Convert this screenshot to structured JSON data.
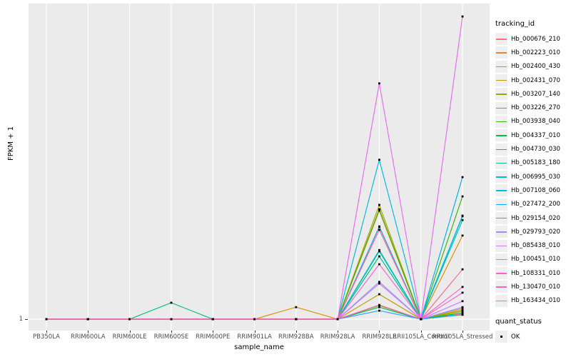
{
  "chart_data": {
    "type": "line",
    "title": "",
    "xlabel": "sample_name",
    "ylabel": "FPKM + 1",
    "x_categories": [
      "PB350LA",
      "RRIM600LA",
      "RRIM600LE",
      "RRIM600SE",
      "RRIM600PE",
      "RRIM901LA",
      "RRIM928BA",
      "RRIM928LA",
      "RRIM928LE",
      "RRII105LA_Control",
      "RRII105LA_Stressed"
    ],
    "y_axis": {
      "scale": "log-like, only the value 1 is labeled",
      "tick_labels": [
        "1"
      ]
    },
    "values_unit": "fraction of panel height above the y=1 baseline (axis shows no labels above 1); 0 = FPKM+1 of 1",
    "legend_title": "tracking_id",
    "panel_background": "#EBEBEB",
    "gridline_color": "#FFFFFF",
    "point_color": "#000000",
    "series": [
      {
        "name": "Hb_000676_210",
        "color": "#F8766D",
        "values": [
          0,
          0,
          0,
          0,
          0,
          0,
          0,
          0,
          0.294,
          0,
          0.016
        ]
      },
      {
        "name": "Hb_002223_010",
        "color": "#EA8331",
        "values": [
          0,
          0,
          0,
          0,
          0,
          0,
          0,
          0,
          0.344,
          0,
          0.034
        ]
      },
      {
        "name": "Hb_002400_430",
        "color": "#D89000",
        "values": [
          0,
          0,
          0,
          0,
          0,
          0,
          0.038,
          0,
          0.348,
          0,
          0.265
        ]
      },
      {
        "name": "Hb_002431_070",
        "color": "#C09B00",
        "values": [
          0,
          0,
          0,
          0,
          0,
          0,
          0,
          0,
          0.079,
          0,
          0.02
        ]
      },
      {
        "name": "Hb_003207_140",
        "color": "#A3A500",
        "values": [
          0,
          0,
          0,
          0,
          0,
          0,
          0,
          0,
          0.362,
          0,
          0.025
        ]
      },
      {
        "name": "Hb_003226_270",
        "color": "#7CAE00",
        "values": [
          0,
          0,
          0,
          0,
          0,
          0,
          0,
          0,
          0.043,
          0,
          0.029
        ]
      },
      {
        "name": "Hb_003938_040",
        "color": "#39B600",
        "values": [
          0,
          0,
          0,
          0,
          0,
          0,
          0,
          0,
          0.348,
          0,
          0.389
        ]
      },
      {
        "name": "Hb_004337_010",
        "color": "#00BB4E",
        "values": [
          0,
          0,
          0,
          0,
          0,
          0,
          0,
          0,
          0.038,
          0,
          0.02
        ]
      },
      {
        "name": "Hb_004730_030",
        "color": "#00BF7D",
        "values": [
          0,
          0,
          0,
          0.052,
          0,
          0,
          0,
          0,
          0.199,
          0,
          0.014
        ]
      },
      {
        "name": "Hb_005183_180",
        "color": "#00C1A7",
        "values": [
          0,
          0,
          0,
          0,
          0,
          0,
          0,
          0,
          0.219,
          0,
          0.314
        ]
      },
      {
        "name": "Hb_006995_030",
        "color": "#00BFC4",
        "values": [
          0,
          0,
          0,
          0,
          0,
          0,
          0,
          0,
          0.215,
          0,
          0.326
        ]
      },
      {
        "name": "Hb_007108_060",
        "color": "#00BAE0",
        "values": [
          0,
          0,
          0,
          0,
          0,
          0,
          0,
          0,
          0.505,
          0,
          0.328
        ]
      },
      {
        "name": "Hb_027472_200",
        "color": "#00B0F6",
        "values": [
          0,
          0,
          0,
          0,
          0,
          0,
          0,
          0,
          0.292,
          0,
          0.45
        ]
      },
      {
        "name": "Hb_029154_020",
        "color": "#35A2FF",
        "values": [
          0,
          0,
          0,
          0,
          0,
          0,
          0,
          0,
          0.027,
          0,
          0.014
        ]
      },
      {
        "name": "Hb_029793_020",
        "color": "#9590FF",
        "values": [
          0,
          0,
          0,
          0,
          0,
          0,
          0,
          0,
          0.118,
          0,
          0.038
        ]
      },
      {
        "name": "Hb_085438_010",
        "color": "#C77CFF",
        "values": [
          0,
          0,
          0,
          0,
          0,
          0,
          0,
          0,
          0.113,
          0,
          0.057
        ]
      },
      {
        "name": "Hb_100451_010",
        "color": "#E76BF3",
        "values": [
          0,
          0,
          0,
          0,
          0,
          0,
          0,
          0,
          0.747,
          0,
          0.959
        ]
      },
      {
        "name": "Hb_108331_010",
        "color": "#FA62DB",
        "values": [
          0,
          0,
          0,
          0,
          0,
          0,
          0,
          0,
          0.174,
          0,
          0.084
        ]
      },
      {
        "name": "Hb_130470_010",
        "color": "#FF62BC",
        "values": [
          0,
          0,
          0,
          0,
          0,
          0,
          0,
          0,
          0.045,
          0,
          0.102
        ]
      },
      {
        "name": "Hb_163434_010",
        "color": "#FF6A98",
        "values": [
          0,
          0,
          0,
          0,
          0,
          0,
          0,
          0,
          0.283,
          0,
          0.158
        ]
      }
    ],
    "quant_status": {
      "title": "quant_status",
      "items": [
        {
          "label": "OK",
          "marker": "black-square"
        }
      ]
    }
  }
}
